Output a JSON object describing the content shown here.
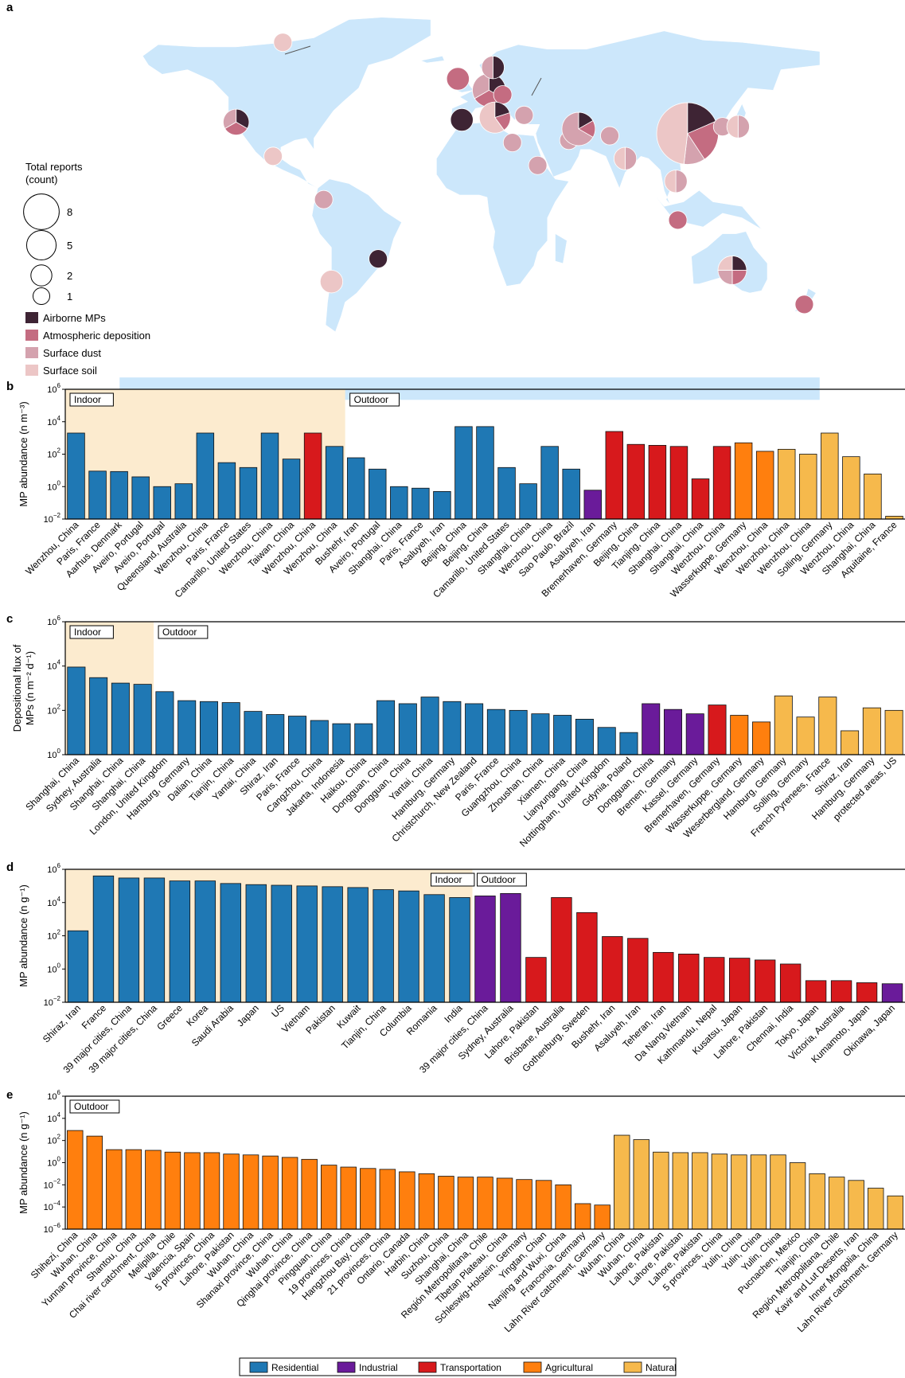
{
  "colors": {
    "Residential": "#1f78b4",
    "Industrial": "#6a1b9a",
    "Transportation": "#d7191c",
    "Agricultural": "#ff7f0e",
    "Natural": "#f6b94c",
    "Airborne MPs": "#3e2434",
    "Atmospheric deposition": "#c46c81",
    "Surface dust": "#d4a2ae",
    "Surface soil": "#ecc6c6",
    "map_land": "#cce7fb",
    "indoor_shade": "#fcebcf"
  },
  "panel_a": {
    "label": "a",
    "size_legend_title": [
      "Total reports",
      "(count)"
    ],
    "size_legend": [
      {
        "count": 8,
        "label": "8"
      },
      {
        "count": 5,
        "label": "5"
      },
      {
        "count": 2,
        "label": "2"
      },
      {
        "count": 1,
        "label": "1"
      }
    ],
    "type_legend": [
      "Airborne MPs",
      "Atmospheric deposition",
      "Surface dust",
      "Surface soil"
    ],
    "sites": [
      {
        "lon": -96,
        "lat": 72,
        "total": 1,
        "counts": [
          0,
          0,
          0,
          1
        ]
      },
      {
        "lon": -120,
        "lat": 37,
        "total": 3,
        "counts": [
          1,
          1,
          1,
          0
        ]
      },
      {
        "lon": -101,
        "lat": 22,
        "total": 1,
        "counts": [
          0,
          0,
          0,
          1
        ]
      },
      {
        "lon": -75,
        "lat": 3,
        "total": 1,
        "counts": [
          0,
          0,
          1,
          0
        ]
      },
      {
        "lon": -47,
        "lat": -23,
        "total": 1,
        "counts": [
          1,
          0,
          0,
          0
        ]
      },
      {
        "lon": -71,
        "lat": -33,
        "total": 2,
        "counts": [
          0,
          0,
          0,
          2
        ]
      },
      {
        "lon": -4,
        "lat": 38,
        "total": 2,
        "counts": [
          2,
          0,
          0,
          0
        ]
      },
      {
        "lon": -6,
        "lat": 56,
        "total": 2,
        "counts": [
          0,
          2,
          0,
          0
        ]
      },
      {
        "lon": 10,
        "lat": 51,
        "total": 6,
        "counts": [
          2,
          2,
          2,
          0
        ]
      },
      {
        "lon": 12,
        "lat": 61,
        "total": 2,
        "counts": [
          1,
          0,
          1,
          0
        ]
      },
      {
        "lon": 17,
        "lat": 49,
        "total": 1,
        "counts": [
          0,
          1,
          0,
          0
        ]
      },
      {
        "lon": 13,
        "lat": 39,
        "total": 5,
        "counts": [
          1,
          1,
          0,
          3
        ]
      },
      {
        "lon": 28,
        "lat": 40,
        "total": 1,
        "counts": [
          0,
          0,
          1,
          0
        ]
      },
      {
        "lon": 22,
        "lat": 28,
        "total": 1,
        "counts": [
          0,
          0,
          1,
          0
        ]
      },
      {
        "lon": 35,
        "lat": 18,
        "total": 1,
        "counts": [
          0,
          0,
          1,
          0
        ]
      },
      {
        "lon": 51,
        "lat": 29,
        "total": 1,
        "counts": [
          0,
          0,
          1,
          0
        ]
      },
      {
        "lon": 56,
        "lat": 34,
        "total": 6,
        "counts": [
          1,
          1,
          4,
          0
        ]
      },
      {
        "lon": 72,
        "lat": 31,
        "total": 1,
        "counts": [
          0,
          0,
          1,
          0
        ]
      },
      {
        "lon": 80,
        "lat": 21,
        "total": 2,
        "counts": [
          0,
          0,
          1,
          1
        ]
      },
      {
        "lon": 112,
        "lat": 32,
        "total": 27,
        "counts": [
          5,
          6,
          3,
          13
        ]
      },
      {
        "lon": 130,
        "lat": 35,
        "total": 1,
        "counts": [
          0,
          0,
          1,
          0
        ]
      },
      {
        "lon": 138,
        "lat": 35,
        "total": 2,
        "counts": [
          0,
          0,
          1,
          1
        ]
      },
      {
        "lon": 106,
        "lat": 11,
        "total": 2,
        "counts": [
          0,
          0,
          1,
          1
        ]
      },
      {
        "lon": 107,
        "lat": -6,
        "total": 1,
        "counts": [
          0,
          1,
          0,
          0
        ]
      },
      {
        "lon": 135,
        "lat": -28,
        "total": 4,
        "counts": [
          1,
          1,
          1,
          1
        ]
      },
      {
        "lon": 172,
        "lat": -43,
        "total": 1,
        "counts": [
          0,
          1,
          0,
          0
        ]
      }
    ]
  },
  "chart_data": [
    {
      "type": "bar",
      "panel": "b",
      "title": "",
      "ylabel": "MP abundance (n m⁻³)",
      "ylim_log10": [
        -2,
        6
      ],
      "yscale": "log",
      "region_labels": [
        "Indoor",
        "Outdoor"
      ],
      "indoor_count": 13,
      "categories": [
        "Wenzhou, China",
        "Paris, France",
        "Aarhus, Denmark",
        "Aveiro, Portugal",
        "Aveiro, Portugal",
        "Queensland, Australia",
        "Wenzhou, China",
        "Paris, France",
        "Camarillo, United States",
        "Wenzhou, China",
        "Taiwan, China",
        "Wenzhou, China",
        "Wenzhou, China",
        "Bushehr, Iran",
        "Aveiro, Portugal",
        "Shanghai, China",
        "Paris, France",
        "Asaluyeh, Iran",
        "Beijing, China",
        "Beijing, China",
        "Camarillo, United States",
        "Shanghai, China",
        "Wenzhou, China",
        "Sao Paulo, Brazil",
        "Asaluyeh, Iran",
        "Bremerhaven, Germany",
        "Beijing, China",
        "Tianjing, China",
        "Shanghai, China",
        "Shanghai, China",
        "Wenzhou, China",
        "Wasserkuppe, Germany",
        "Wenzhou, China",
        "Wenzhou, China",
        "Wenzhou, China",
        "Solling, Germany",
        "Wenzhou, China",
        "Shanghai, China",
        "Aquitaine, France"
      ],
      "values": [
        2000,
        9,
        8.5,
        4,
        1,
        1.5,
        2000,
        30,
        15,
        2000,
        50,
        2000,
        300,
        60,
        12,
        1,
        0.8,
        0.5,
        5000,
        5000,
        15,
        1.5,
        300,
        12,
        0.6,
        2500,
        400,
        350,
        300,
        3,
        300,
        500,
        150,
        200,
        100,
        2000,
        70,
        6,
        0.015
      ],
      "sectors": [
        "Residential",
        "Residential",
        "Residential",
        "Residential",
        "Residential",
        "Residential",
        "Residential",
        "Residential",
        "Residential",
        "Residential",
        "Residential",
        "Transportation",
        "Residential",
        "Residential",
        "Residential",
        "Residential",
        "Residential",
        "Residential",
        "Residential",
        "Residential",
        "Residential",
        "Residential",
        "Residential",
        "Residential",
        "Industrial",
        "Transportation",
        "Transportation",
        "Transportation",
        "Transportation",
        "Transportation",
        "Transportation",
        "Agricultural",
        "Agricultural",
        "Natural",
        "Natural",
        "Natural",
        "Natural",
        "Natural",
        "Natural"
      ]
    },
    {
      "type": "bar",
      "panel": "c",
      "title": "",
      "ylabel": [
        "Depositional flux of",
        "MPs (n m⁻² d⁻¹)"
      ],
      "ylim_log10": [
        0,
        6
      ],
      "yscale": "log",
      "region_labels": [
        "Indoor",
        "Outdoor"
      ],
      "indoor_count": 4,
      "categories": [
        "Shanghai, China",
        "Sydney, Australia",
        "Shanghai, China",
        "Shanghai, China",
        "London, United Kingdom",
        "Hamburg, Germany",
        "Dalian, China",
        "Tianjin, China",
        "Yantai, China",
        "Shiraz, Iran",
        "Paris, France",
        "Cangzhou, China",
        "Jakarta, Indonesia",
        "Haikou, China",
        "Dongguan, China",
        "Dongguan, China",
        "Yantai, China",
        "Hamburg, Germany",
        "Christchurch, New Zealand",
        "Paris, France",
        "Guangzhou, China",
        "Zhoushan, China",
        "Xiamen, China",
        "Lianyungang, China",
        "Nottingham, United Kingdom",
        "Gdynia, Poland",
        "Dongguan, China",
        "Bremen, Germany",
        "Kassel, Germany",
        "Bremerhaven, Germany",
        "Wasserkuppe, Germany",
        "Weserbergland, Germany",
        "Hamburg, Germany",
        "Solling, Germany",
        "French Pyrenees, France",
        "Shiraz, Iran",
        "Hamburg, Germany",
        "protected areas, US"
      ],
      "values": [
        9000,
        3000,
        1700,
        1500,
        700,
        275,
        250,
        225,
        90,
        65,
        55,
        35,
        25,
        25,
        275,
        200,
        400,
        250,
        200,
        110,
        100,
        70,
        60,
        40,
        17,
        10,
        200,
        110,
        70,
        175,
        60,
        30,
        450,
        50,
        400,
        12,
        130,
        100
      ],
      "sectors": [
        "Residential",
        "Residential",
        "Residential",
        "Residential",
        "Residential",
        "Residential",
        "Residential",
        "Residential",
        "Residential",
        "Residential",
        "Residential",
        "Residential",
        "Residential",
        "Residential",
        "Residential",
        "Residential",
        "Residential",
        "Residential",
        "Residential",
        "Residential",
        "Residential",
        "Residential",
        "Residential",
        "Residential",
        "Residential",
        "Residential",
        "Industrial",
        "Industrial",
        "Industrial",
        "Transportation",
        "Agricultural",
        "Agricultural",
        "Natural",
        "Natural",
        "Natural",
        "Natural",
        "Natural",
        "Natural"
      ]
    },
    {
      "type": "bar",
      "panel": "d",
      "title": "",
      "ylabel": "MP abundance (n g⁻¹)",
      "ylim_log10": [
        -2,
        6
      ],
      "yscale": "log",
      "region_labels": [
        "Indoor",
        "Outdoor"
      ],
      "indoor_count": 16,
      "categories": [
        "Shiraz, Iran",
        "France",
        "39 major cities, China",
        "39 major cities, China",
        "Greece",
        "Korea",
        "Saudi Arabia",
        "Japan",
        "US",
        "Vietnam",
        "Pakistan",
        "Kuwait",
        "Tianjin, China",
        "Columbia",
        "Romania",
        "India",
        "39 major cities, China",
        "Sydney, Australia",
        "Lahore, Pakistan",
        "Brisbane, Australia",
        "Gothenburg, Sweden",
        "Bushehr, Iran",
        "Asaluyeh, Iran",
        "Teheran, Iran",
        "Da Nang,Vietnam",
        "Kathmandu, Nepal",
        "Kusatsu, Japan",
        "Lahore, Pakistan",
        "Chennai, India",
        "Tokyo, Japan",
        "Victoria, Australia",
        "Kumamoto, Japan",
        "Okinawa, Japan"
      ],
      "values": [
        200,
        400000,
        300000,
        300000,
        200000,
        200000,
        140000,
        120000,
        110000,
        100000,
        90000,
        80000,
        60000,
        50000,
        30000,
        20000,
        25000,
        35000,
        5,
        20000,
        2500,
        90,
        70,
        10,
        8,
        5,
        4.5,
        3.5,
        2,
        0.2,
        0.2,
        0.15,
        0.13
      ],
      "sectors": [
        "Residential",
        "Residential",
        "Residential",
        "Residential",
        "Residential",
        "Residential",
        "Residential",
        "Residential",
        "Residential",
        "Residential",
        "Residential",
        "Residential",
        "Residential",
        "Residential",
        "Residential",
        "Residential",
        "Industrial",
        "Industrial",
        "Transportation",
        "Transportation",
        "Transportation",
        "Transportation",
        "Transportation",
        "Transportation",
        "Transportation",
        "Transportation",
        "Transportation",
        "Transportation",
        "Transportation",
        "Transportation",
        "Transportation",
        "Transportation",
        "Industrial"
      ]
    },
    {
      "type": "bar",
      "panel": "e",
      "title": "",
      "ylabel": "MP abundance (n g⁻¹)",
      "ylim_log10": [
        -6,
        6
      ],
      "yscale": "log",
      "region_labels": [
        "Outdoor"
      ],
      "indoor_count": 0,
      "categories": [
        "Shihezi, China",
        "Wuhan, China",
        "Yunnan province, China",
        "Shantou, China",
        "Chai river catchment, China",
        "Melipilla, Chile",
        "Valencia, Spain",
        "5 provinces, China",
        "Lahore, Pakistan",
        "Wuhan, China",
        "Shanaxi province, China",
        "Wuhan, China",
        "Qinghai province, China",
        "Pingquan, China",
        "19 provinces, China",
        "Hangzhou Bay, China",
        "21 provinces, China",
        "Ontario, Canada",
        "Harbin, China",
        "Suzhou, China",
        "Shanghai, China",
        "Región Metropolitana, Chile",
        "Tibetan Plateau, China",
        "Schleswig-Holstein, Germany",
        "Yingtan, Chian",
        "Nanjing and Wuxi, China",
        "Franconia, Germany",
        "Lahn River catchment, Germany",
        "Wuhan, China",
        "Wuhan, China",
        "Lahore, Pakistan",
        "Lahore, Pakistan",
        "Lahore, Pakistan",
        "5 provinces, China",
        "Yulin, China",
        "Yulin, China",
        "Yulin, China",
        "Pucnachen, Mexico",
        "Tianjin, China",
        "Región Metropolitana, Chile",
        "Kavir and Lut Deserts, Iran",
        "Inner Mongolia, China",
        "Lahn River catchment, Germany"
      ],
      "values": [
        800,
        250,
        15,
        15,
        13,
        9,
        8,
        8,
        6,
        5,
        4,
        3,
        2,
        0.6,
        0.4,
        0.3,
        0.25,
        0.15,
        0.1,
        0.06,
        0.05,
        0.05,
        0.04,
        0.03,
        0.025,
        0.01,
        0.0002,
        0.00015,
        300,
        120,
        9,
        8,
        8,
        6,
        5,
        5,
        5,
        1,
        0.1,
        0.05,
        0.025,
        0.005,
        0.001
      ],
      "sectors": [
        "Agricultural",
        "Agricultural",
        "Agricultural",
        "Agricultural",
        "Agricultural",
        "Agricultural",
        "Agricultural",
        "Agricultural",
        "Agricultural",
        "Agricultural",
        "Agricultural",
        "Agricultural",
        "Agricultural",
        "Agricultural",
        "Agricultural",
        "Agricultural",
        "Agricultural",
        "Agricultural",
        "Agricultural",
        "Agricultural",
        "Agricultural",
        "Agricultural",
        "Agricultural",
        "Agricultural",
        "Agricultural",
        "Agricultural",
        "Agricultural",
        "Agricultural",
        "Natural",
        "Natural",
        "Natural",
        "Natural",
        "Natural",
        "Natural",
        "Natural",
        "Natural",
        "Natural",
        "Natural",
        "Natural",
        "Natural",
        "Natural",
        "Natural",
        "Natural"
      ]
    }
  ],
  "legend": [
    "Residential",
    "Industrial",
    "Transportation",
    "Agricultural",
    "Natural"
  ]
}
